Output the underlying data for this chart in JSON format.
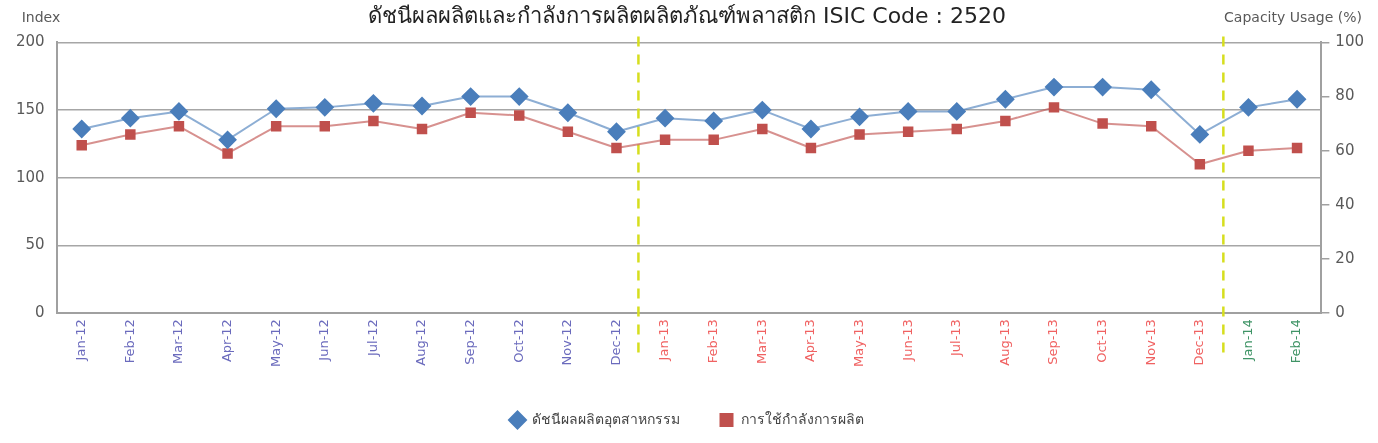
{
  "chart_data": {
    "type": "line",
    "title": "ดัชนีผลผลิตและกำลังการผลิตผลิตภัณฑ์พลาสติก ISIC Code : 2520",
    "ylabel": "Index",
    "y2label": "Capacity Usage (%)",
    "x": [
      "2012-01",
      "2012-02",
      "2012-03",
      "2012-04",
      "2012-05",
      "2012-06",
      "2012-07",
      "2012-08",
      "2012-09",
      "2012-10",
      "2012-11",
      "2012-12",
      "2013-01",
      "2013-02",
      "2013-03",
      "2013-04",
      "2013-05",
      "2013-06",
      "2013-07",
      "2013-08",
      "2013-09",
      "2013-10",
      "2013-11",
      "2013-12",
      "2014-01",
      "2014-02"
    ],
    "xlim": [
      "2011-12-16",
      "2014-02-15"
    ],
    "xticks": [
      {
        "value": "2012-01",
        "label": "Jan-12"
      },
      {
        "value": "2012-02",
        "label": "Feb-12"
      },
      {
        "value": "2012-03",
        "label": "Mar-12"
      },
      {
        "value": "2012-04",
        "label": "Apr-12"
      },
      {
        "value": "2012-05",
        "label": "May-12"
      },
      {
        "value": "2012-06",
        "label": "Jun-12"
      },
      {
        "value": "2012-07",
        "label": "Jul-12"
      },
      {
        "value": "2012-08",
        "label": "Aug-12"
      },
      {
        "value": "2012-09",
        "label": "Sep-12"
      },
      {
        "value": "2012-10",
        "label": "Oct-12"
      },
      {
        "value": "2012-11",
        "label": "Nov-12"
      },
      {
        "value": "2012-12",
        "label": "Dec-12"
      },
      {
        "value": "2013-01",
        "label": "Jan-13"
      },
      {
        "value": "2013-02",
        "label": "Feb-13"
      },
      {
        "value": "2013-03",
        "label": "Mar-13"
      },
      {
        "value": "2013-04",
        "label": "Apr-13"
      },
      {
        "value": "2013-05",
        "label": "May-13"
      },
      {
        "value": "2013-06",
        "label": "Jun-13"
      },
      {
        "value": "2013-07",
        "label": "Jul-13"
      },
      {
        "value": "2013-08",
        "label": "Aug-13"
      },
      {
        "value": "2013-09",
        "label": "Sep-13"
      },
      {
        "value": "2013-10",
        "label": "Oct-13"
      },
      {
        "value": "2013-11",
        "label": "Nov-13"
      },
      {
        "value": "2013-12",
        "label": "Dec-13"
      },
      {
        "value": "2014-01",
        "label": "Jan-14"
      },
      {
        "value": "2014-02",
        "label": "Feb-14"
      }
    ],
    "ylim": [
      0,
      200
    ],
    "yticks": [
      0,
      50,
      100,
      150,
      200
    ],
    "y2lim": [
      0,
      100
    ],
    "y2ticks": [
      0,
      20,
      40,
      60,
      80,
      100
    ],
    "series": [
      {
        "name": "ดัชนีผลผลิตอุตสาหกรรม",
        "color": "#4a7ebb",
        "marker": "diamond",
        "values": [
          136,
          144,
          149,
          128,
          151,
          152,
          155,
          153,
          160,
          160,
          148,
          134,
          144,
          142,
          150,
          136,
          145,
          149,
          149,
          158,
          167,
          167,
          165,
          132,
          152,
          158
        ]
      },
      {
        "name": "การใช้กำลังการผลิต",
        "color": "#c0504d",
        "marker": "square",
        "axis": "y2",
        "values": [
          62,
          66,
          69,
          59,
          69,
          69,
          71,
          68,
          74,
          73,
          67,
          61,
          64,
          64,
          68,
          61,
          66,
          67,
          68,
          71,
          76,
          70,
          69,
          55,
          60,
          61
        ]
      }
    ],
    "ref_lines": [
      {
        "axis": "x",
        "value": "2012-12-15",
        "color": "#d6de1e",
        "line_style": "dashed"
      },
      {
        "axis": "x",
        "value": "2013-12-16",
        "color": "#d6de1e",
        "line_style": "dashed"
      }
    ],
    "grid": "y",
    "legend": "bottom"
  }
}
